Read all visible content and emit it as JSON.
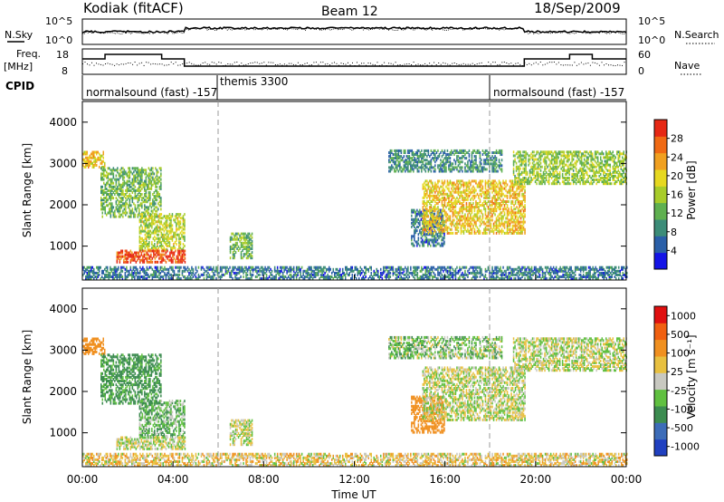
{
  "header": {
    "station": "Kodiak (fitACF)",
    "beam": "Beam 12",
    "date": "18/Sep/2009"
  },
  "noise_panel": {
    "left_label": "N.Sky",
    "right_label": "N.Search",
    "left_ticks": [
      "10^5",
      "10^0"
    ],
    "right_ticks": [
      "10^5",
      "10^0"
    ]
  },
  "freq_panel": {
    "left_label_1": "Freq.",
    "left_label_2": "[MHz]",
    "left_ticks": [
      "18",
      "8"
    ],
    "right_label": "Nave",
    "right_ticks": [
      "60",
      "0"
    ]
  },
  "cpid_panel": {
    "label": "CPID",
    "modes": [
      {
        "name": "normalsound (fast) -157",
        "start_hour": 0
      },
      {
        "name": "themis 3300",
        "start_hour": 6
      },
      {
        "name": "normalsound (fast) -157",
        "start_hour": 18
      }
    ]
  },
  "x_axis": {
    "label": "Time UT",
    "ticks": [
      "00:00",
      "04:00",
      "08:00",
      "12:00",
      "16:00",
      "20:00",
      "00:00"
    ],
    "range_hours": [
      0,
      24
    ]
  },
  "power_panel": {
    "ylabel": "Slant Range [km]",
    "yticks": [
      "1000",
      "2000",
      "3000",
      "4000"
    ],
    "cbar_label": "Power [dB]",
    "cbar_ticks": [
      "4",
      "8",
      "12",
      "16",
      "20",
      "24",
      "28"
    ],
    "cbar_colors": [
      "#1414e6",
      "#2a5fa8",
      "#3c8c78",
      "#5fb050",
      "#a8cc2a",
      "#e6d820",
      "#f0a020",
      "#f06a14",
      "#e62814"
    ]
  },
  "velocity_panel": {
    "ylabel": "Slant Range [km]",
    "yticks": [
      "1000",
      "2000",
      "3000",
      "4000"
    ],
    "cbar_label": "Velocity [m s⁻¹]",
    "cbar_ticks": [
      "1000",
      "500",
      "100",
      "25",
      "-25",
      "-100",
      "-500",
      "-1000"
    ],
    "cbar_colors": [
      "#2040c0",
      "#3c6cb8",
      "#3c8c50",
      "#60c040",
      "#c8c8c0",
      "#e8c040",
      "#f09020",
      "#f06010",
      "#e01010"
    ]
  },
  "chart_data": {
    "type": "heatmap",
    "title": "Kodiak (fitACF) Beam 12 18/Sep/2009",
    "xlabel": "Time UT",
    "ylabel": "Slant Range [km]",
    "xlim": [
      0,
      24
    ],
    "ylim": [
      180,
      4500
    ],
    "series": [
      {
        "name": "Power [dB]",
        "range": [
          0,
          30
        ]
      },
      {
        "name": "Velocity [m s⁻¹]",
        "range": [
          -1000,
          1000
        ]
      }
    ],
    "echo_regions": [
      {
        "t_start": 0.0,
        "t_end": 1.0,
        "range_min": 2900,
        "range_max": 3300,
        "power": 20,
        "velocity": -400
      },
      {
        "t_start": 0.8,
        "t_end": 3.5,
        "range_min": 1700,
        "range_max": 2900,
        "power": 12,
        "velocity": 150
      },
      {
        "t_start": 2.5,
        "t_end": 4.5,
        "range_min": 900,
        "range_max": 1800,
        "power": 16,
        "velocity": 80
      },
      {
        "t_start": 1.5,
        "t_end": 4.5,
        "range_min": 600,
        "range_max": 900,
        "power": 28,
        "velocity": 0
      },
      {
        "t_start": 6.5,
        "t_end": 7.5,
        "range_min": 700,
        "range_max": 1300,
        "power": 12,
        "velocity": 0
      },
      {
        "t_start": 14.5,
        "t_end": 16.0,
        "range_min": 1000,
        "range_max": 1900,
        "power": 6,
        "velocity": -300
      },
      {
        "t_start": 15.0,
        "t_end": 19.5,
        "range_min": 1300,
        "range_max": 2600,
        "power": 20,
        "velocity": 0
      },
      {
        "t_start": 13.5,
        "t_end": 18.5,
        "range_min": 2800,
        "range_max": 3300,
        "power": 8,
        "velocity": 50
      },
      {
        "t_start": 19.0,
        "t_end": 24.0,
        "range_min": 2500,
        "range_max": 3300,
        "power": 14,
        "velocity": 0
      },
      {
        "t_start": 0.0,
        "t_end": 24.0,
        "range_min": 200,
        "range_max": 500,
        "power": 6,
        "velocity": -50
      }
    ]
  }
}
